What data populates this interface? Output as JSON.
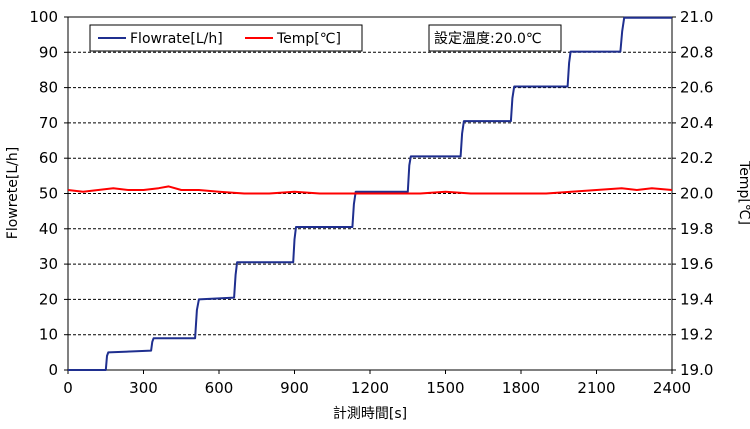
{
  "chart_data": {
    "type": "line",
    "xlabel": "計測時間[s]",
    "ylabel": "Flowrete[L/h]",
    "y2label": "Temp[℃]",
    "annotation": "設定温度:20.0℃",
    "xlim": [
      0,
      2400
    ],
    "ylim": [
      0,
      100
    ],
    "y2lim": [
      19.0,
      21.0
    ],
    "x_ticks": [
      "0",
      "300",
      "600",
      "900",
      "1200",
      "1500",
      "1800",
      "2100",
      "2400"
    ],
    "y_ticks": [
      "0",
      "10",
      "20",
      "30",
      "40",
      "50",
      "60",
      "70",
      "80",
      "90",
      "100"
    ],
    "y2_ticks": [
      "19.0",
      "19.2",
      "19.4",
      "19.6",
      "19.8",
      "20.0",
      "20.2",
      "20.4",
      "20.6",
      "20.8",
      "21.0"
    ],
    "grid": "horizontal dashed",
    "legend_position": "top-left",
    "series": [
      {
        "name": "Flowrate[L/h]",
        "axis": "left",
        "color": "#1f2f8f",
        "x": [
          0,
          150,
          155,
          160,
          330,
          335,
          340,
          505,
          512,
          520,
          660,
          666,
          672,
          895,
          900,
          906,
          1130,
          1136,
          1143,
          1350,
          1356,
          1362,
          1560,
          1566,
          1573,
          1760,
          1766,
          1773,
          1985,
          1991,
          1997,
          2195,
          2202,
          2210,
          2400
        ],
        "y": [
          0,
          0,
          4,
          5,
          5.5,
          8,
          9,
          9,
          17,
          20,
          20.5,
          27,
          30.5,
          30.5,
          37,
          40.5,
          40.5,
          47,
          50.5,
          50.5,
          58,
          60.5,
          60.5,
          67,
          70.5,
          70.5,
          77,
          80.3,
          80.3,
          87,
          90.2,
          90.2,
          96,
          99.8,
          99.8
        ]
      },
      {
        "name": "Temp[℃]",
        "axis": "right",
        "color": "#ff0000",
        "x": [
          0,
          60,
          120,
          180,
          240,
          300,
          360,
          400,
          450,
          520,
          600,
          700,
          800,
          900,
          1000,
          1100,
          1200,
          1300,
          1400,
          1500,
          1600,
          1700,
          1800,
          1900,
          2000,
          2100,
          2200,
          2260,
          2320,
          2400
        ],
        "y": [
          20.02,
          20.01,
          20.02,
          20.03,
          20.02,
          20.02,
          20.03,
          20.04,
          20.02,
          20.02,
          20.01,
          20.0,
          20.0,
          20.01,
          20.0,
          20.0,
          20.0,
          20.0,
          20.0,
          20.01,
          20.0,
          20.0,
          20.0,
          20.0,
          20.01,
          20.02,
          20.03,
          20.02,
          20.03,
          20.02
        ]
      }
    ]
  }
}
